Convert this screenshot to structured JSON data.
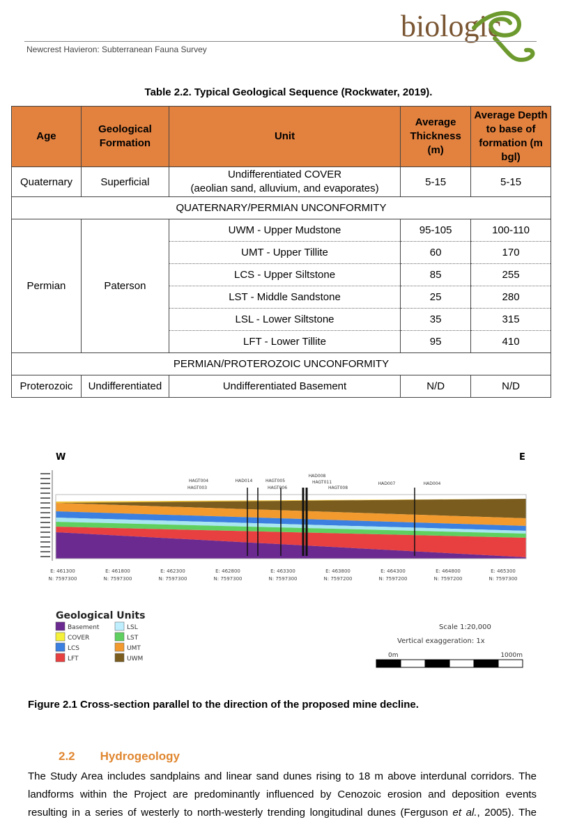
{
  "header": {
    "running_title": "Newcrest Havieron: Subterranean Fauna Survey",
    "logo": "biologic"
  },
  "table": {
    "caption": "Table 2.2. Typical Geological Sequence (Rockwater, 2019).",
    "header": [
      "Age",
      "Geological Formation",
      "Unit",
      "Average Thickness (m)",
      "Average Depth to base of formation (m bgl)"
    ],
    "quaternary": {
      "age": "Quaternary",
      "formation": "Superficial",
      "unit": [
        "Undifferentiated COVER",
        "(aeolian sand, alluvium, and evaporates)"
      ],
      "thickness": "5-15",
      "depth": "5-15"
    },
    "unconformity_1": "QUATERNARY/PERMIAN UNCONFORMITY",
    "permian": {
      "age": "Permian",
      "formation": "Paterson",
      "units": [
        {
          "unit": "UWM - Upper Mudstone",
          "thickness": "95-105",
          "depth": "100-110"
        },
        {
          "unit": "UMT - Upper Tillite",
          "thickness": "60",
          "depth": "170"
        },
        {
          "unit": "LCS - Upper Siltstone",
          "thickness": "85",
          "depth": "255"
        },
        {
          "unit": "LST - Middle Sandstone",
          "thickness": "25",
          "depth": "280"
        },
        {
          "unit": "LSL - Lower Siltstone",
          "thickness": "35",
          "depth": "315"
        },
        {
          "unit": "LFT - Lower Tillite",
          "thickness": "95",
          "depth": "410"
        }
      ]
    },
    "unconformity_2": "PERMIAN/PROTEROZOIC UNCONFORMITY",
    "proterozoic": {
      "age": "Proterozoic",
      "formation": "Undifferentiated",
      "unit": "Undifferentiated Basement",
      "thickness": "N/D",
      "depth": "N/D"
    }
  },
  "figure": {
    "west": "W",
    "east": "E",
    "drillholes": [
      "HAGT004",
      "HAGT003",
      "HAD014",
      "HAGT005",
      "HAGT006",
      "HAD008",
      "HAGT011",
      "HAGT008",
      "HAD007",
      "HAD004"
    ],
    "coordinates": [
      [
        "E: 461300",
        "N: 7597300"
      ],
      [
        "E: 461800",
        "N: 7597300"
      ],
      [
        "E: 462300",
        "N: 7597300"
      ],
      [
        "E: 462800",
        "N: 7597300"
      ],
      [
        "E: 463300",
        "N: 7597300"
      ],
      [
        "E: 463800",
        "N: 7597200"
      ],
      [
        "E: 464300",
        "N: 7597200"
      ],
      [
        "E: 464800",
        "N: 7597200"
      ],
      [
        "E: 465300",
        "N: 7597300"
      ]
    ],
    "legend_title": "Geological Units",
    "legend": [
      "Basement",
      "COVER",
      "LCS",
      "LFT",
      "LSL",
      "LST",
      "UMT",
      "UWM"
    ],
    "scale": "Scale 1:20,000",
    "exaggeration": "Vertical exaggeration: 1x",
    "scale_start": "0m",
    "scale_end": "1000m",
    "caption": "Figure 2.1 Cross-section parallel to the direction of the proposed mine decline."
  },
  "section": {
    "number": "2.2",
    "title": "Hydrogeology",
    "lines": [
      "The Study Area includes sandplains and linear sand dunes rising to 18 m above interdunal corridors. The",
      "landforms within the Project are predominantly influenced by Cenozoic erosion and deposition events"
    ],
    "last_line": [
      "resulting in a series of westerly to north-westerly trending longitudinal dunes (Ferguson ",
      "et al.",
      ", 2005). The"
    ]
  }
}
